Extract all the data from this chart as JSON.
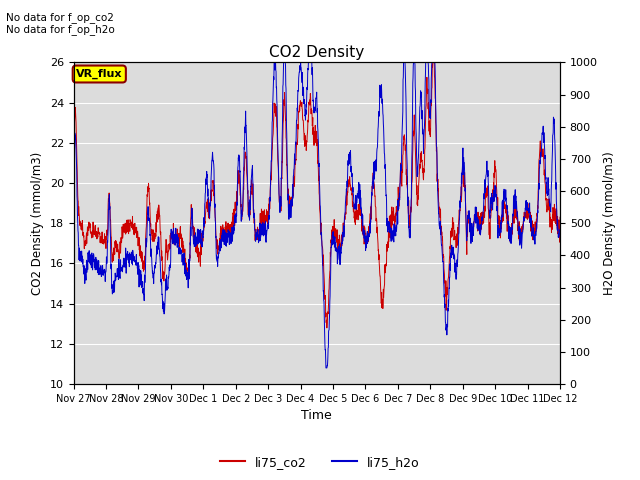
{
  "title": "CO2 Density",
  "xlabel": "Time",
  "ylabel_left": "CO2 Density (mmol/m3)",
  "ylabel_right": "H2O Density (mmol/m3)",
  "ylim_left": [
    10,
    26
  ],
  "ylim_right": [
    0,
    1000
  ],
  "yticks_left": [
    10,
    12,
    14,
    16,
    18,
    20,
    22,
    24,
    26
  ],
  "yticks_right": [
    0,
    100,
    200,
    300,
    400,
    500,
    600,
    700,
    800,
    900,
    1000
  ],
  "xtick_labels": [
    "Nov 27",
    "Nov 28",
    "Nov 29",
    "Nov 30",
    "Dec 1",
    "Dec 2",
    "Dec 3",
    "Dec 4",
    "Dec 5",
    "Dec 6",
    "Dec 7",
    "Dec 8",
    "Dec 9",
    "Dec 10",
    "Dec 11",
    "Dec 12"
  ],
  "annotation_top": "No data for f_op_co2\nNo data for f_op_h2o",
  "box_label": "VR_flux",
  "box_color": "#ffff00",
  "box_border": "#8B0000",
  "color_co2": "#cc0000",
  "color_h2o": "#0000cc",
  "legend_co2": "li75_co2",
  "legend_h2o": "li75_h2o",
  "background_color": "#dcdcdc",
  "grid_color": "#ffffff"
}
